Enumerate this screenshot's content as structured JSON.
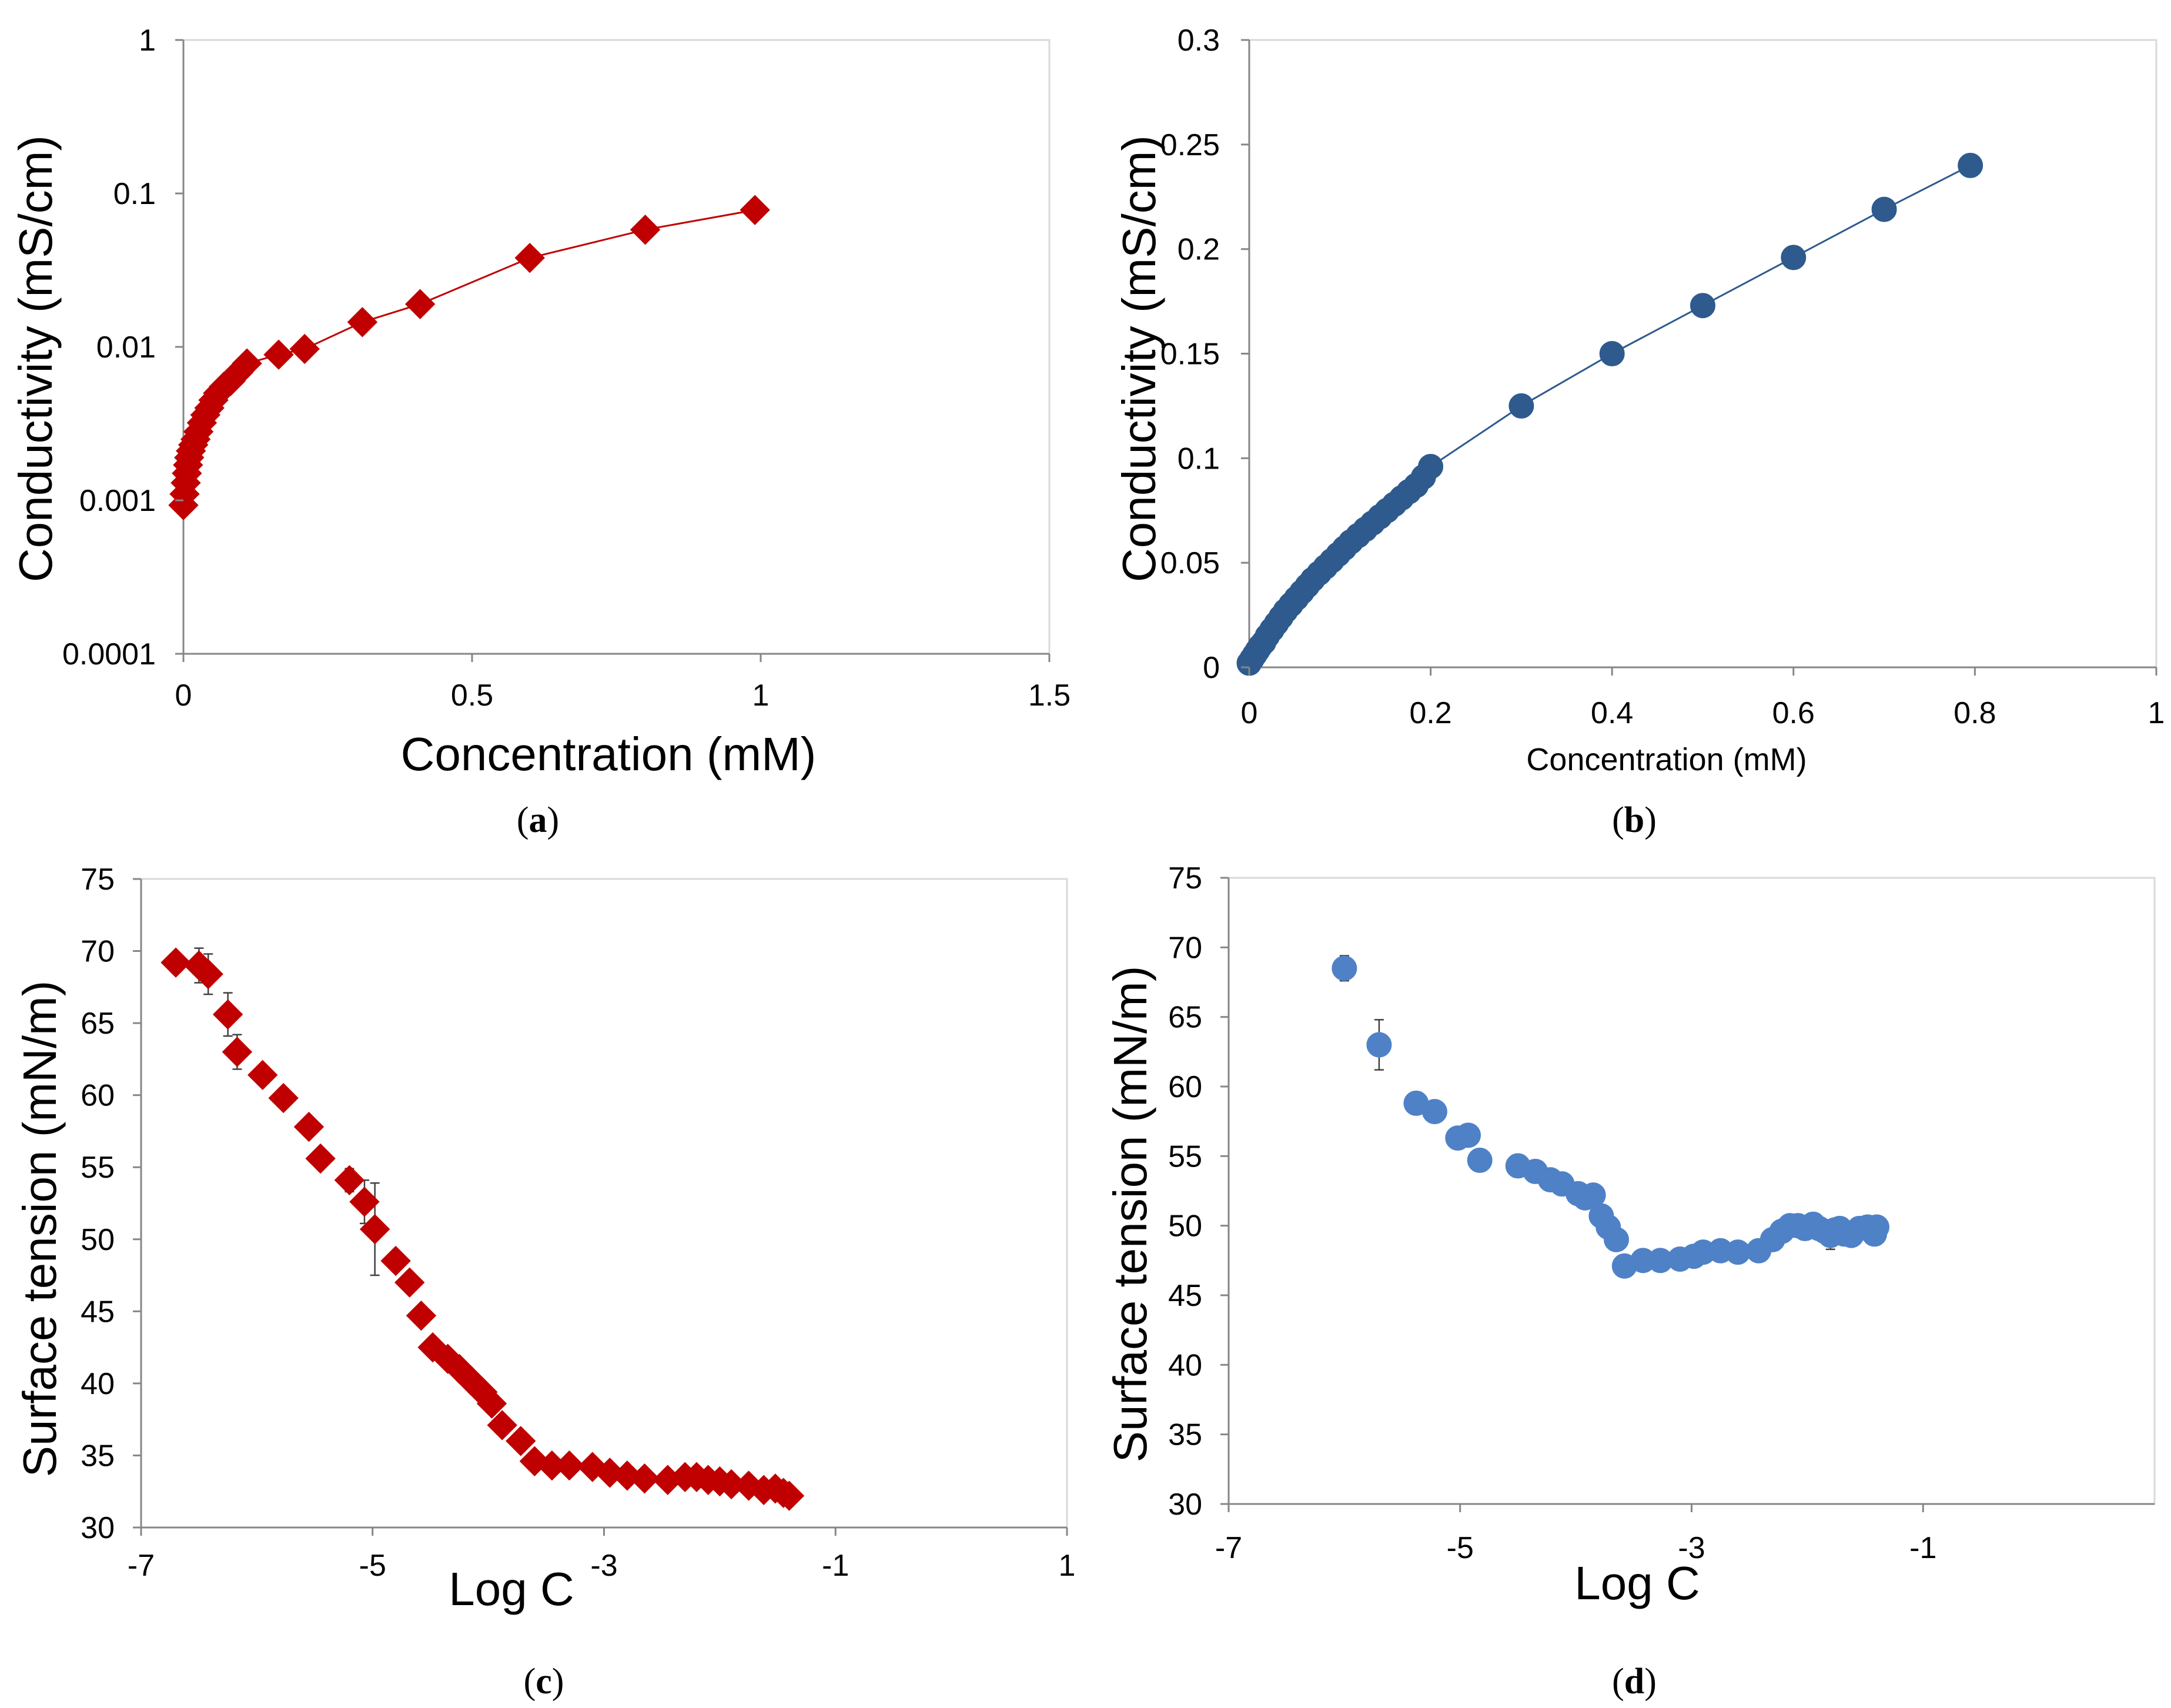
{
  "panel_labels": [
    "a",
    "b",
    "c",
    "d"
  ],
  "chart_data": [
    {
      "panel": "a",
      "type": "scatter",
      "title": "",
      "xlabel": "Concentration (mM)",
      "ylabel": "Conductivity (mS/cm)",
      "xlim": [
        0,
        1.5
      ],
      "xticks": [
        0,
        0.5,
        1,
        1.5
      ],
      "xtick_labels": [
        "0",
        "0.5",
        "1",
        "1.5"
      ],
      "yscale": "log",
      "ylim": [
        0.0001,
        1
      ],
      "yticks": [
        0.0001,
        0.001,
        0.01,
        0.1,
        1
      ],
      "ytick_labels": [
        "0.0001",
        "0.001",
        "0.01",
        "0.1",
        "1"
      ],
      "marker": "diamond",
      "color": "#c00000",
      "line": true,
      "grid": false,
      "series": [
        {
          "name": "Conductivity",
          "x": [
            0.0,
            0.002,
            0.004,
            0.006,
            0.008,
            0.01,
            0.013,
            0.017,
            0.021,
            0.026,
            0.032,
            0.038,
            0.045,
            0.052,
            0.06,
            0.07,
            0.082,
            0.095,
            0.11,
            0.165,
            0.21,
            0.31,
            0.41,
            0.6,
            0.8,
            0.99
          ],
          "y": [
            0.00093,
            0.0011,
            0.0013,
            0.0015,
            0.0017,
            0.0019,
            0.0021,
            0.0023,
            0.0025,
            0.0028,
            0.0032,
            0.0036,
            0.004,
            0.0045,
            0.005,
            0.0055,
            0.006,
            0.0068,
            0.0078,
            0.0089,
            0.0097,
            0.0145,
            0.019,
            0.038,
            0.058,
            0.078
          ]
        }
      ]
    },
    {
      "panel": "b",
      "type": "scatter",
      "title": "",
      "xlabel": "Concentration (mM)",
      "ylabel": "Conductivity (mS/cm)",
      "xlim": [
        0,
        1
      ],
      "xticks": [
        0,
        0.2,
        0.4,
        0.6,
        0.8,
        1
      ],
      "xtick_labels": [
        "0",
        "0.2",
        "0.4",
        "0.6",
        "0.8",
        "1"
      ],
      "ylim": [
        0,
        0.3
      ],
      "yticks": [
        0,
        0.05,
        0.1,
        0.15,
        0.2,
        0.25,
        0.3
      ],
      "ytick_labels": [
        "0",
        "0.05",
        "0.1",
        "0.15",
        "0.2",
        "0.25",
        "0.3"
      ],
      "marker": "circle",
      "color": "#2e5a8e",
      "line": true,
      "grid": false,
      "series": [
        {
          "name": "Conductivity",
          "x": [
            0.0,
            0.003,
            0.006,
            0.009,
            0.012,
            0.016,
            0.02,
            0.025,
            0.03,
            0.035,
            0.04,
            0.046,
            0.052,
            0.058,
            0.064,
            0.07,
            0.077,
            0.084,
            0.091,
            0.098,
            0.105,
            0.112,
            0.12,
            0.128,
            0.136,
            0.144,
            0.152,
            0.16,
            0.168,
            0.176,
            0.184,
            0.192,
            0.2,
            0.3,
            0.4,
            0.5,
            0.6,
            0.7,
            0.795
          ],
          "y": [
            0.002,
            0.004,
            0.006,
            0.008,
            0.01,
            0.012,
            0.015,
            0.018,
            0.021,
            0.024,
            0.027,
            0.03,
            0.033,
            0.036,
            0.039,
            0.042,
            0.045,
            0.048,
            0.051,
            0.054,
            0.057,
            0.06,
            0.063,
            0.066,
            0.069,
            0.072,
            0.075,
            0.078,
            0.081,
            0.084,
            0.087,
            0.091,
            0.096,
            0.125,
            0.15,
            0.173,
            0.196,
            0.219,
            0.24
          ]
        }
      ]
    },
    {
      "panel": "c",
      "type": "scatter",
      "title": "",
      "xlabel": "Log C",
      "ylabel": "Surface tension (mN/m)",
      "xlim": [
        -7,
        1
      ],
      "xticks": [
        -7,
        -5,
        -3,
        -1,
        1
      ],
      "xtick_labels": [
        "-7",
        "-5",
        "-3",
        "-1",
        "1"
      ],
      "ylim": [
        30,
        75
      ],
      "yticks": [
        30,
        35,
        40,
        45,
        50,
        55,
        60,
        65,
        70,
        75
      ],
      "ytick_labels": [
        "30",
        "35",
        "40",
        "45",
        "50",
        "55",
        "60",
        "65",
        "70",
        "75"
      ],
      "marker": "diamond",
      "color": "#c00000",
      "line": false,
      "error_bars": true,
      "grid": false,
      "series": [
        {
          "name": "Surface tension",
          "x": [
            -6.7,
            -6.5,
            -6.42,
            -6.25,
            -6.17,
            -5.95,
            -5.77,
            -5.55,
            -5.45,
            -5.2,
            -5.07,
            -4.98,
            -4.8,
            -4.68,
            -4.58,
            -4.48,
            -4.35,
            -4.25,
            -4.15,
            -4.05,
            -3.97,
            -3.88,
            -3.72,
            -3.6,
            -3.45,
            -3.3,
            -3.1,
            -2.95,
            -2.8,
            -2.65,
            -2.45,
            -2.3,
            -2.2,
            -2.1,
            -2.0,
            -1.9,
            -1.75,
            -1.62,
            -1.52,
            -1.45,
            -1.4
          ],
          "y": [
            69.2,
            69.0,
            68.4,
            65.6,
            63.0,
            61.4,
            59.8,
            57.8,
            55.6,
            54.1,
            52.6,
            50.7,
            48.5,
            47.0,
            44.7,
            42.5,
            41.7,
            41.0,
            40.2,
            39.4,
            38.6,
            37.1,
            36.0,
            34.6,
            34.3,
            34.3,
            34.2,
            33.8,
            33.6,
            33.4,
            33.3,
            33.5,
            33.5,
            33.3,
            33.2,
            33.0,
            32.9,
            32.6,
            32.7,
            32.4,
            32.2
          ],
          "err": [
            0.4,
            1.2,
            1.4,
            1.5,
            1.2,
            0.6,
            0.5,
            0.5,
            0.6,
            0.8,
            1.5,
            3.2,
            0.6,
            0.5,
            0.4,
            0.4,
            0.3,
            0.3,
            0.3,
            0.3,
            0.3,
            0.3,
            0.3,
            0.3,
            0.3,
            0.3,
            0.3,
            0.3,
            0.3,
            0.3,
            0.3,
            0.3,
            0.3,
            0.3,
            0.3,
            0.3,
            0.3,
            0.3,
            0.3,
            0.3,
            0.3
          ]
        }
      ]
    },
    {
      "panel": "d",
      "type": "scatter",
      "title": "",
      "xlabel": "Log C",
      "ylabel": "Surface tension (mN/m)",
      "xlim": [
        -7,
        1
      ],
      "xticks": [
        -7,
        -5,
        -3,
        -1
      ],
      "xtick_labels": [
        "-7",
        "-5",
        "-3",
        "-1"
      ],
      "ylim": [
        30,
        75
      ],
      "yticks": [
        30,
        35,
        40,
        45,
        50,
        55,
        60,
        65,
        70,
        75
      ],
      "ytick_labels": [
        "30",
        "35",
        "40",
        "45",
        "50",
        "55",
        "60",
        "65",
        "70",
        "75"
      ],
      "marker": "circle",
      "color": "#4f81c7",
      "line": false,
      "error_bars": true,
      "grid": false,
      "series": [
        {
          "name": "Surface tension",
          "x": [
            -6.0,
            -5.7,
            -5.38,
            -5.22,
            -5.02,
            -4.93,
            -4.83,
            -4.5,
            -4.35,
            -4.22,
            -4.12,
            -3.98,
            -3.92,
            -3.85,
            -3.78,
            -3.72,
            -3.65,
            -3.58,
            -3.42,
            -3.27,
            -3.1,
            -2.98,
            -2.9,
            -2.75,
            -2.6,
            -2.42,
            -2.3,
            -2.22,
            -2.15,
            -2.08,
            -2.02,
            -1.95,
            -1.9,
            -1.85,
            -1.8,
            -1.76,
            -1.72,
            -1.68,
            -1.62,
            -1.55,
            -1.48,
            -1.42,
            -1.4
          ],
          "y": [
            68.5,
            63.0,
            58.8,
            58.2,
            56.3,
            56.5,
            54.7,
            54.3,
            53.9,
            53.3,
            53.0,
            52.3,
            52.0,
            52.2,
            50.7,
            49.9,
            49.0,
            47.1,
            47.5,
            47.5,
            47.6,
            47.8,
            48.1,
            48.2,
            48.1,
            48.2,
            49.0,
            49.6,
            50.0,
            50.0,
            49.8,
            50.1,
            49.8,
            49.6,
            49.3,
            49.7,
            49.8,
            49.4,
            49.3,
            49.8,
            49.9,
            49.4,
            49.9
          ],
          "err": [
            0.9,
            1.8,
            0.4,
            0.3,
            0.3,
            0.4,
            0.3,
            0.4,
            0.4,
            0.6,
            0.4,
            0.3,
            0.3,
            0.3,
            0.3,
            0.3,
            0.3,
            0.3,
            0.3,
            0.3,
            0.3,
            0.3,
            0.3,
            0.3,
            0.3,
            0.3,
            0.3,
            0.3,
            0.3,
            0.3,
            0.3,
            0.3,
            0.3,
            0.3,
            1.0,
            0.5,
            0.5,
            0.5,
            0.5,
            0.6,
            0.8,
            0.5,
            0.6
          ]
        }
      ]
    }
  ]
}
